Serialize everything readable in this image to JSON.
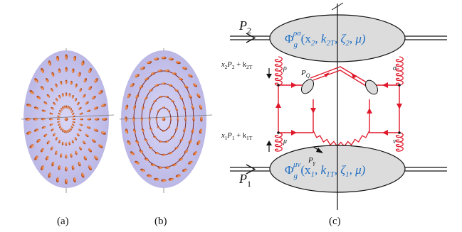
{
  "figure": {
    "panel_labels": [
      "(a)",
      "(b)",
      "(c)"
    ],
    "diagram": {
      "P2": "P",
      "P2_sub": "2",
      "P1": "P",
      "P1_sub": "1",
      "upper_blob": {
        "phi": "Φ",
        "sup": "ρσ",
        "sub": "g",
        "args": "(x",
        "a1": "2",
        "a2": ", k",
        "a3": "2T",
        "a4": ", ζ",
        "a5": "2",
        "a6": ", μ)"
      },
      "lower_blob": {
        "phi": "Φ",
        "sup": "μν",
        "sub": "g",
        "args": "(x",
        "a1": "1",
        "a2": ", k",
        "a3": "1T",
        "a4": ", ζ",
        "a5": "1",
        "a6": ", μ)"
      },
      "upper_momentum": "x",
      "upper_momentum_sub1": "2",
      "upper_momentum_mid": "P",
      "upper_momentum_sub2": "2",
      "upper_momentum_end": " + k",
      "upper_momentum_sub3": "2T",
      "lower_momentum": "x",
      "lower_momentum_sub1": "1",
      "lower_momentum_mid": "P",
      "lower_momentum_sub2": "1",
      "lower_momentum_end": " + k",
      "lower_momentum_sub3": "1T",
      "PQ": "P",
      "PQ_sub": "Q",
      "Pgamma": "P",
      "Pgamma_sub": "γ",
      "rho": "ρ",
      "sigma": "σ",
      "mu": "μ",
      "nu": "ν"
    },
    "colors": {
      "disc": "#c9c6ee",
      "ellipsoid": "#d9662a",
      "quark_line": "#e0192b",
      "gluon": "#e0192b",
      "blob_fill": "#dcdcdc",
      "blob_text": "#1f6fc4"
    }
  }
}
